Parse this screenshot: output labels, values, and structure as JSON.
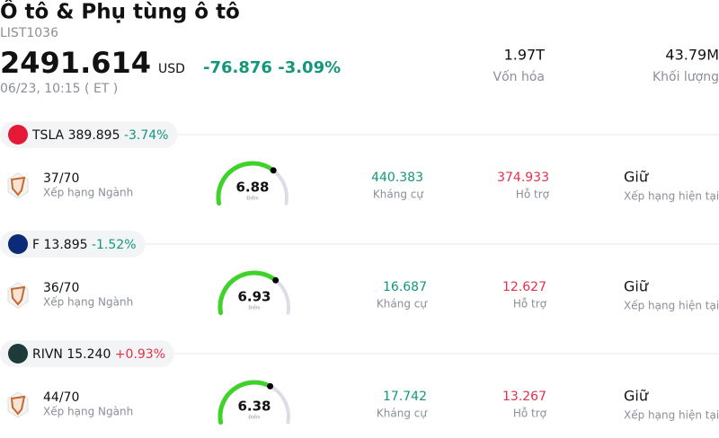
{
  "header": {
    "title": "Ô tô & Phụ tùng ô tô",
    "code": "LIST1036",
    "price": "2491.614",
    "currency": "USD",
    "change": "-76.876",
    "change_pct": "-3.09%",
    "time": "06/23, 10:15  ( ET )",
    "market_cap": "1.97T",
    "market_cap_label": "Vốn hóa",
    "volume": "43.79M",
    "volume_label": "Khối lượng"
  },
  "stocks": [
    {
      "ticker": "TSLA",
      "price": "389.895",
      "change": "-3.74%",
      "rank": "37/70",
      "rank_label": "Xếp hạng Ngành",
      "score": 6.88,
      "score_label": "Điểm",
      "resistance": "440.383",
      "resistance_label": "Kháng cự",
      "support": "374.933",
      "support_label": "Hỗ trợ",
      "rating": "Giữ",
      "rating_label": "Xếp hạng hiện tại"
    },
    {
      "ticker": "F",
      "price": "13.895",
      "change": "-1.52%",
      "rank": "36/70",
      "rank_label": "Xếp hạng Ngành",
      "score": 6.93,
      "score_label": "Điểm",
      "resistance": "16.687",
      "resistance_label": "Kháng cự",
      "support": "12.627",
      "support_label": "Hỗ trợ",
      "rating": "Giữ",
      "rating_label": "Xếp hạng hiện tại"
    },
    {
      "ticker": "RIVN",
      "price": "15.240",
      "change": "+0.93%",
      "rank": "44/70",
      "rank_label": "Xếp hạng Ngành",
      "score": 6.38,
      "score_label": "Điểm",
      "resistance": "17.742",
      "resistance_label": "Kháng cự",
      "support": "13.267",
      "support_label": "Hỗ trợ",
      "rating": "Giữ",
      "rating_label": "Xếp hạng hiện tại"
    }
  ]
}
